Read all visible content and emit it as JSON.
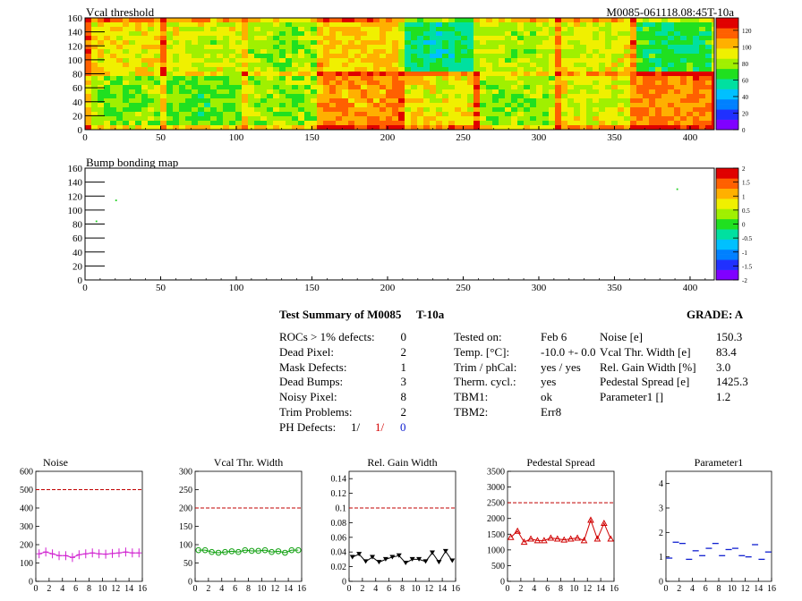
{
  "maps": [
    {
      "title": "Vcal threshold",
      "id_label": "M0085-061118.08:45T-10a",
      "x_ticks": [
        "0",
        "50",
        "100",
        "150",
        "200",
        "250",
        "300",
        "350",
        "400"
      ],
      "y_ticks": [
        "0",
        "20",
        "40",
        "60",
        "80",
        "100",
        "120",
        "140",
        "160"
      ],
      "xlim": [
        0,
        416
      ],
      "ylim": [
        0,
        160
      ],
      "colorbar_ticks": [
        "0",
        "20",
        "40",
        "60",
        "80",
        "100",
        "120"
      ],
      "zlim": [
        0,
        135
      ],
      "roc_rows": [
        [
          95,
          88,
          80,
          100,
          60,
          85,
          90,
          65
        ],
        [
          78,
          75,
          80,
          110,
          95,
          80,
          90,
          112
        ]
      ],
      "bright_band_row": 80,
      "bright_band_value": 120
    },
    {
      "title": "Bump bonding map",
      "x_ticks": [
        "0",
        "50",
        "100",
        "150",
        "200",
        "250",
        "300",
        "350",
        "400"
      ],
      "y_ticks": [
        "0",
        "20",
        "40",
        "60",
        "80",
        "100",
        "120",
        "140",
        "160"
      ],
      "xlim": [
        0,
        416
      ],
      "ylim": [
        0,
        160
      ],
      "colorbar_ticks": [
        "-2",
        "-1.5",
        "-1",
        "-0.5",
        "0",
        "0.5",
        "1",
        "1.5",
        "2"
      ],
      "zlim": [
        -2,
        2
      ],
      "defects": [
        {
          "x": 20,
          "y": 115
        },
        {
          "x": 7,
          "y": 85
        },
        {
          "x": 391,
          "y": 131
        }
      ]
    }
  ],
  "summary": {
    "title": "Test Summary of M0085",
    "temp_tag": "T-10a",
    "grade_label": "GRADE:  A",
    "left": [
      {
        "label": "ROCs > 1% defects:",
        "value": "0"
      },
      {
        "label": "Dead Pixel:",
        "value": "2"
      },
      {
        "label": "Mask Defects:",
        "value": "1"
      },
      {
        "label": "Dead Bumps:",
        "value": "3"
      },
      {
        "label": "Noisy Pixel:",
        "value": "8"
      },
      {
        "label": "Trim Problems:",
        "value": "2"
      }
    ],
    "ph_defects": {
      "label": "PH Defects:",
      "v1": "1/",
      "v2": "1/",
      "v3": "0"
    },
    "middle": [
      {
        "label": "Tested on:",
        "value": "Feb 6"
      },
      {
        "label": "Temp. [°C]:",
        "value": "-10.0 +- 0.0"
      },
      {
        "label": "Trim / phCal:",
        "value": "yes / yes"
      },
      {
        "label": "Therm. cycl.:",
        "value": "yes"
      },
      {
        "label": "TBM1:",
        "value": "ok"
      },
      {
        "label": "TBM2:",
        "value": "Err8"
      }
    ],
    "right": [
      {
        "label": "Noise [e]",
        "value": "150.3"
      },
      {
        "label": "Vcal Thr. Width [e]",
        "value": "83.4"
      },
      {
        "label": "Rel. Gain Width [%]",
        "value": "3.0"
      },
      {
        "label": "Pedestal Spread [e]",
        "value": "1425.3"
      },
      {
        "label": "Parameter1 []",
        "value": "1.2"
      }
    ]
  },
  "chart_data": [
    {
      "type": "line",
      "title": "Noise",
      "x": [
        0,
        1,
        2,
        3,
        4,
        5,
        6,
        7,
        8,
        9,
        10,
        11,
        12,
        13,
        14,
        15
      ],
      "x_ticks": [
        "0",
        "2",
        "4",
        "6",
        "8",
        "10",
        "12",
        "14",
        "16"
      ],
      "xlim": [
        0,
        16
      ],
      "ylim": [
        0,
        600
      ],
      "y_ticks": [
        "0",
        "100",
        "200",
        "300",
        "400",
        "500",
        "600"
      ],
      "threshold": 500,
      "values": [
        150,
        160,
        150,
        140,
        140,
        130,
        145,
        150,
        155,
        150,
        148,
        152,
        155,
        160,
        155,
        155
      ],
      "color": "#d020d0",
      "marker": "cross"
    },
    {
      "type": "line",
      "title": "Vcal Thr. Width",
      "x": [
        0,
        1,
        2,
        3,
        4,
        5,
        6,
        7,
        8,
        9,
        10,
        11,
        12,
        13,
        14,
        15
      ],
      "x_ticks": [
        "0",
        "2",
        "4",
        "6",
        "8",
        "10",
        "12",
        "14",
        "16"
      ],
      "xlim": [
        0,
        16
      ],
      "ylim": [
        0,
        300
      ],
      "y_ticks": [
        "0",
        "50",
        "100",
        "150",
        "200",
        "250",
        "300"
      ],
      "threshold": 200,
      "values": [
        85,
        85,
        80,
        78,
        80,
        82,
        80,
        85,
        83,
        83,
        85,
        80,
        82,
        78,
        85,
        85
      ],
      "color": "#10a010",
      "marker": "circle"
    },
    {
      "type": "line",
      "title": "Rel. Gain Width",
      "x": [
        0,
        1,
        2,
        3,
        4,
        5,
        6,
        7,
        8,
        9,
        10,
        11,
        12,
        13,
        14,
        15
      ],
      "x_ticks": [
        "0",
        "2",
        "4",
        "6",
        "8",
        "10",
        "12",
        "14",
        "16"
      ],
      "xlim": [
        0,
        16
      ],
      "ylim": [
        0,
        0.15
      ],
      "y_ticks": [
        "0",
        "0.02",
        "0.04",
        "0.06",
        "0.08",
        "0.1",
        "0.12",
        "0.14"
      ],
      "threshold": 0.1,
      "values": [
        0.033,
        0.037,
        0.027,
        0.033,
        0.026,
        0.03,
        0.033,
        0.035,
        0.025,
        0.03,
        0.03,
        0.027,
        0.039,
        0.026,
        0.041,
        0.028
      ],
      "color": "#000000",
      "marker": "triangle-down"
    },
    {
      "type": "line",
      "title": "Pedestal Spread",
      "x": [
        0,
        1,
        2,
        3,
        4,
        5,
        6,
        7,
        8,
        9,
        10,
        11,
        12,
        13,
        14,
        15
      ],
      "x_ticks": [
        "0",
        "2",
        "4",
        "6",
        "8",
        "10",
        "12",
        "14",
        "16"
      ],
      "xlim": [
        0,
        16
      ],
      "ylim": [
        0,
        3500
      ],
      "y_ticks": [
        "0",
        "500",
        "1000",
        "1500",
        "2000",
        "2500",
        "3000",
        "3500"
      ],
      "threshold": 2500,
      "values": [
        1400,
        1600,
        1250,
        1350,
        1300,
        1300,
        1380,
        1350,
        1320,
        1350,
        1380,
        1300,
        1950,
        1350,
        1850,
        1350
      ],
      "color": "#d00000",
      "marker": "triangle-up"
    },
    {
      "type": "scatter",
      "title": "Parameter1",
      "x": [
        0,
        1,
        2,
        3,
        4,
        5,
        6,
        7,
        8,
        9,
        10,
        11,
        12,
        13,
        14,
        15
      ],
      "x_ticks": [
        "0",
        "2",
        "4",
        "6",
        "8",
        "10",
        "12",
        "14",
        "16"
      ],
      "xlim": [
        0,
        16
      ],
      "ylim": [
        0,
        4.5
      ],
      "y_ticks": [
        "0",
        "1",
        "2",
        "3",
        "4"
      ],
      "values": [
        0.95,
        1.6,
        1.55,
        0.9,
        1.25,
        1.05,
        1.35,
        1.55,
        1.05,
        1.3,
        1.35,
        1.05,
        1.0,
        1.5,
        0.9,
        1.2
      ],
      "color": "#1020d0",
      "marker": "hbar"
    }
  ]
}
